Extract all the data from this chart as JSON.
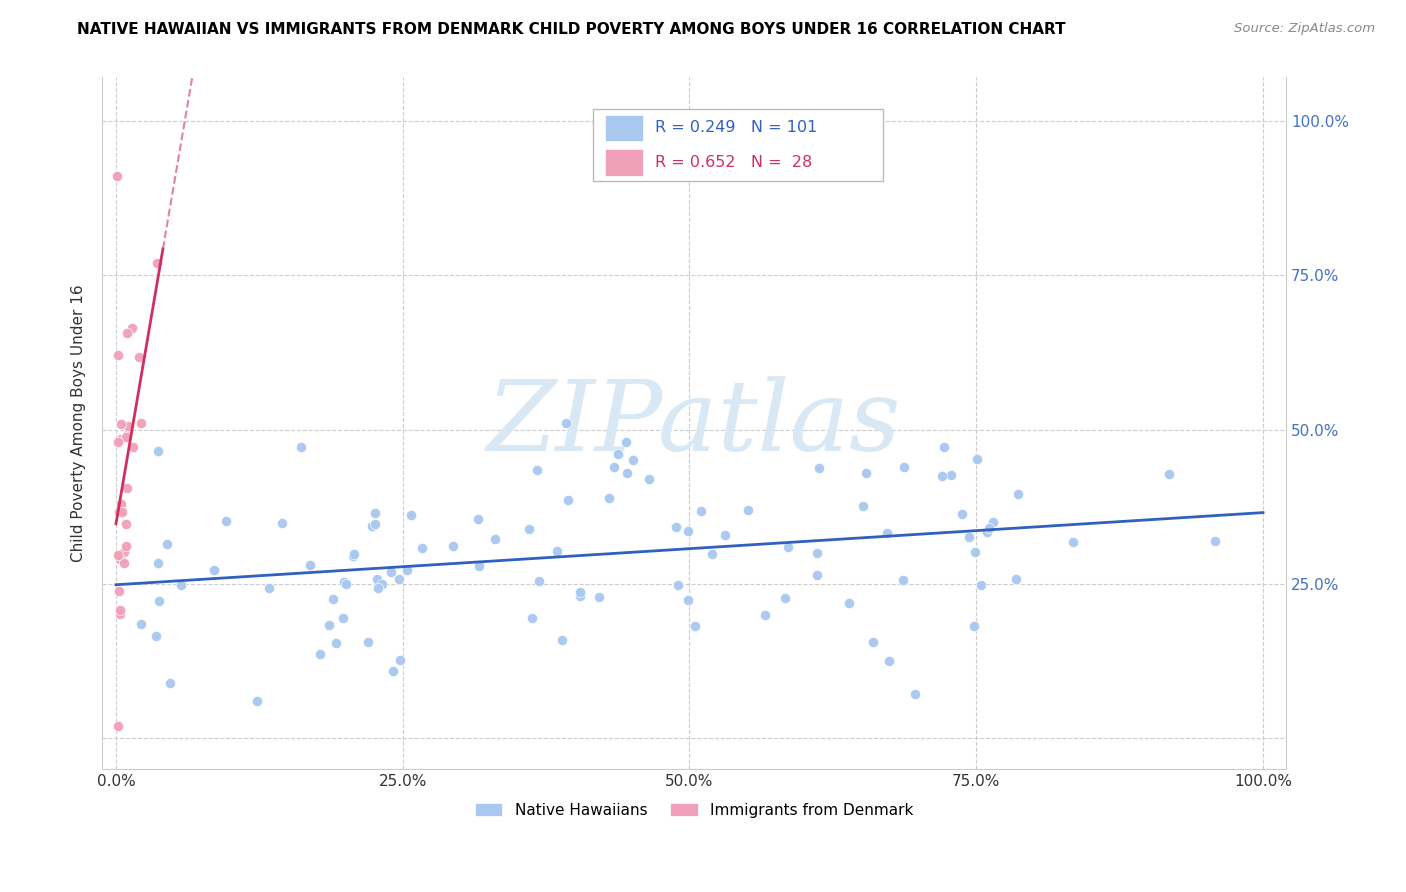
{
  "title": "NATIVE HAWAIIAN VS IMMIGRANTS FROM DENMARK CHILD POVERTY AMONG BOYS UNDER 16 CORRELATION CHART",
  "source": "Source: ZipAtlas.com",
  "ylabel": "Child Poverty Among Boys Under 16",
  "blue_color": "#a8c8f0",
  "pink_color": "#f0a0b8",
  "blue_line_color": "#3060c0",
  "pink_line_color": "#d03060",
  "legend_blue_R": "0.249",
  "legend_blue_N": "101",
  "legend_pink_R": "0.652",
  "legend_pink_N": "28",
  "legend_blue_label": "Native Hawaiians",
  "legend_pink_label": "Immigrants from Denmark",
  "watermark_text": "ZIPatlas",
  "watermark_color": "#d8e8f4",
  "right_axis_labels": [
    "100.0%",
    "75.0%",
    "50.0%",
    "25.0%"
  ],
  "right_axis_color": "#4472c4",
  "x_tick_labels": [
    "0.0%",
    "25.0%",
    "50.0%",
    "75.0%",
    "100.0%"
  ],
  "grid_color": "#cccccc",
  "title_color": "#000000",
  "source_color": "#888888"
}
